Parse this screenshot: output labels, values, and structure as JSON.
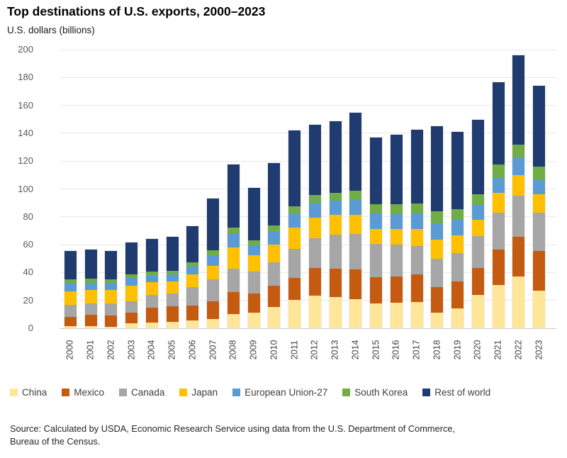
{
  "header": {
    "title": "Top destinations of U.S. exports, 2000–2023",
    "units_label": "U.S. dollars (billions)"
  },
  "source_note": "Source: Calculated by USDA, Economic Research Service using data from the U.S. Department of Commerce,\nBureau of the Census.",
  "chart_data": {
    "type": "bar",
    "stacked": true,
    "title": "Top destinations of U.S. exports, 2000–2023",
    "ylabel": "U.S. dollars (billions)",
    "ylim": [
      0,
      200
    ],
    "ytick_step": 20,
    "grid": true,
    "legend_position": "bottom",
    "categories": [
      "2000",
      "2001",
      "2002",
      "2003",
      "2004",
      "2005",
      "2006",
      "2007",
      "2008",
      "2009",
      "2010",
      "2011",
      "2012",
      "2013",
      "2014",
      "2015",
      "2016",
      "2017",
      "2018",
      "2019",
      "2020",
      "2021",
      "2022",
      "2023"
    ],
    "series": [
      {
        "name": "China",
        "color": "#FFE699",
        "values": [
          1.5,
          1.5,
          1.0,
          3.5,
          4.0,
          4.5,
          5.5,
          6.5,
          10.0,
          11.0,
          15.5,
          20.5,
          23.5,
          22.5,
          21.0,
          18.0,
          18.5,
          19.0,
          11.0,
          14.5,
          24.0,
          31.0,
          37.0,
          27.0
        ]
      },
      {
        "name": "Mexico",
        "color": "#C55A11",
        "values": [
          6.5,
          8.0,
          8.0,
          7.5,
          11.0,
          11.5,
          11.0,
          13.0,
          16.0,
          14.0,
          15.0,
          15.5,
          20.0,
          20.0,
          21.5,
          18.5,
          18.5,
          19.5,
          18.5,
          19.0,
          19.5,
          25.5,
          28.5,
          28.5
        ]
      },
      {
        "name": "Canada",
        "color": "#A6A6A6",
        "values": [
          9.0,
          8.5,
          9.0,
          8.5,
          9.0,
          9.0,
          13.0,
          15.5,
          17.0,
          15.5,
          17.0,
          21.0,
          21.0,
          24.5,
          25.0,
          24.0,
          23.0,
          20.5,
          20.5,
          20.5,
          22.5,
          26.5,
          29.5,
          27.5
        ]
      },
      {
        "name": "Japan",
        "color": "#FFC000",
        "values": [
          9.5,
          9.5,
          9.5,
          11.0,
          9.0,
          8.5,
          9.0,
          10.0,
          15.0,
          12.0,
          12.5,
          15.5,
          15.0,
          14.5,
          14.0,
          11.0,
          11.5,
          12.5,
          13.5,
          12.5,
          12.0,
          14.0,
          15.0,
          13.0
        ]
      },
      {
        "name": "European Union-27",
        "color": "#5B9BD5",
        "values": [
          6.0,
          5.0,
          5.0,
          5.5,
          5.0,
          5.0,
          6.0,
          7.5,
          9.5,
          7.0,
          9.0,
          9.5,
          10.5,
          10.0,
          10.5,
          11.0,
          10.5,
          11.0,
          12.0,
          12.0,
          10.5,
          11.0,
          12.0,
          10.5
        ]
      },
      {
        "name": "South Korea",
        "color": "#70AD47",
        "values": [
          2.5,
          3.0,
          2.5,
          2.5,
          2.5,
          2.5,
          3.0,
          3.5,
          5.0,
          3.5,
          5.0,
          5.5,
          5.5,
          5.5,
          6.5,
          6.5,
          7.0,
          7.0,
          8.5,
          7.0,
          7.5,
          9.5,
          10.0,
          9.5
        ]
      },
      {
        "name": "Rest of world",
        "color": "#1F3B6F",
        "values": [
          20.5,
          21.0,
          20.5,
          23.0,
          23.5,
          24.5,
          26.0,
          37.0,
          45.0,
          38.0,
          44.5,
          54.5,
          50.5,
          51.5,
          56.0,
          48.0,
          50.0,
          53.0,
          61.0,
          55.5,
          53.5,
          59.0,
          64.0,
          58.0
        ]
      }
    ]
  }
}
